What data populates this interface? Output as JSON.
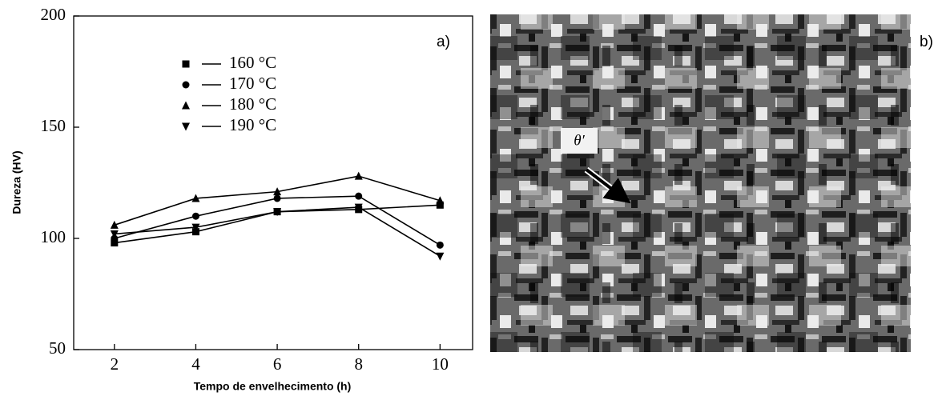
{
  "chart_data": {
    "type": "line",
    "x_label": "Tempo de envelhecimento (h)",
    "y_label": "Dureza (HV)",
    "panel_label": "a)",
    "x": [
      2,
      4,
      6,
      8,
      10
    ],
    "xlim": [
      1,
      10.8
    ],
    "xticks": [
      2,
      4,
      6,
      8,
      10
    ],
    "ylim": [
      50,
      200
    ],
    "yticks": [
      50,
      100,
      150,
      200
    ],
    "grid": false,
    "series": [
      {
        "name": "160 °C",
        "color": "#000000",
        "marker": "square",
        "values": [
          98,
          103,
          112,
          113,
          115
        ]
      },
      {
        "name": "170 °C",
        "color": "#000000",
        "marker": "circle",
        "values": [
          100,
          110,
          118,
          119,
          97
        ]
      },
      {
        "name": "180 °C",
        "color": "#000000",
        "marker": "triangle-up",
        "values": [
          106,
          118,
          121,
          128,
          117
        ]
      },
      {
        "name": "190 °C",
        "color": "#000000",
        "marker": "triangle-down",
        "values": [
          102,
          105,
          112,
          114,
          92
        ]
      }
    ]
  },
  "micrograph": {
    "panel_label": "b)",
    "annotation": "θ′"
  }
}
